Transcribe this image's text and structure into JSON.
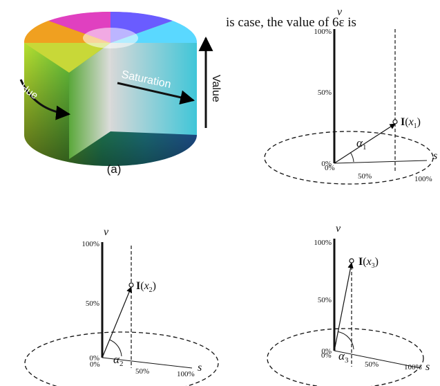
{
  "text_fragment": "is case, the value of 6ε is",
  "panel_a": {
    "caption": "(a)",
    "hue": "Hue",
    "saturation": "Saturation",
    "value": "Value"
  },
  "diagrams": [
    {
      "v_axis": "v",
      "s_axis": "s",
      "v_ticks": [
        "100%",
        "50%",
        "0%"
      ],
      "s_ticks": [
        "0%",
        "50%",
        "100%"
      ],
      "point_label": {
        "name": "I",
        "open": "(",
        "var": "x",
        "sub": "1",
        "close": ")"
      },
      "angle": {
        "symbol": "α",
        "sub": "1"
      }
    },
    {
      "v_axis": "v",
      "s_axis": "s",
      "v_ticks": [
        "100%",
        "50%",
        "0%"
      ],
      "s_ticks": [
        "0%",
        "50%",
        "100%"
      ],
      "point_label": {
        "name": "I",
        "open": "(",
        "var": "x",
        "sub": "2",
        "close": ")"
      },
      "angle": {
        "symbol": "α",
        "sub": "2"
      }
    },
    {
      "v_axis": "v",
      "s_axis": "s",
      "v_ticks": [
        "100%",
        "50%",
        "0%"
      ],
      "s_ticks": [
        "0%",
        "50%",
        "100%"
      ],
      "point_label": {
        "name": "I",
        "open": "(",
        "var": "x",
        "sub": "3",
        "close": ")"
      },
      "angle": {
        "symbol": "α",
        "sub": "3"
      }
    }
  ]
}
